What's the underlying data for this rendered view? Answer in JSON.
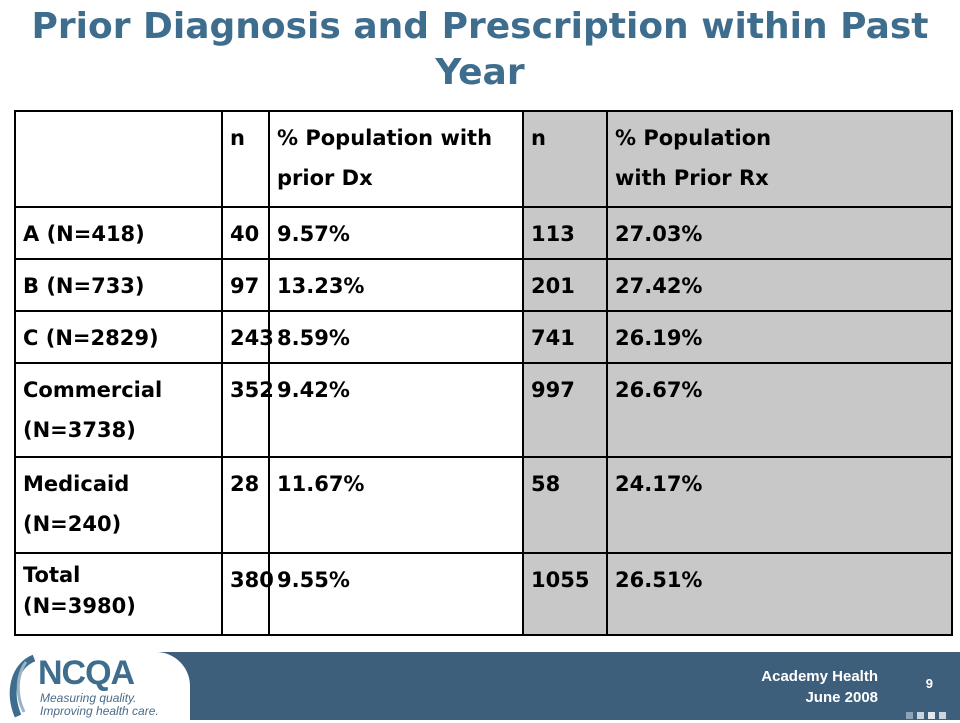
{
  "title": "Prior Diagnosis and Prescription within Past Year",
  "table": {
    "headers": [
      "",
      "n",
      "% Population with prior Dx",
      "n",
      "% Population",
      "with Prior Rx"
    ],
    "rows": [
      {
        "label": "A (N=418)",
        "label2": "",
        "n_dx": "40",
        "pct_dx": "9.57%",
        "n_rx": "113",
        "pct_rx": "27.03%"
      },
      {
        "label": "B (N=733)",
        "label2": "",
        "n_dx": "97",
        "pct_dx": "13.23%",
        "n_rx": "201",
        "pct_rx": "27.42%"
      },
      {
        "label": "C (N=2829)",
        "label2": "",
        "n_dx": "243",
        "pct_dx": "8.59%",
        "n_rx": "741",
        "pct_rx": "26.19%"
      },
      {
        "label": "Commercial",
        "label2": "(N=3738)",
        "n_dx": "352",
        "pct_dx": "9.42%",
        "n_rx": "997",
        "pct_rx": "26.67%"
      },
      {
        "label": "Medicaid",
        "label2": "(N=240)",
        "n_dx": "28",
        "pct_dx": "11.67%",
        "n_rx": "58",
        "pct_rx": "24.17%"
      },
      {
        "label": "Total",
        "label2": "(N=3980)",
        "n_dx": "380",
        "pct_dx": "9.55%",
        "n_rx": "1055",
        "pct_rx": "26.51%"
      }
    ]
  },
  "footer": {
    "logo": "NCQA",
    "tagline_1": "Measuring quality.",
    "tagline_2": "Improving health care.",
    "line1": "Academy Health",
    "line2": "June 2008",
    "page": "9"
  },
  "colors": {
    "title": "#3e6d8d",
    "footer_band": "#3e5f7c",
    "shaded_column": "#c8c8c8"
  }
}
